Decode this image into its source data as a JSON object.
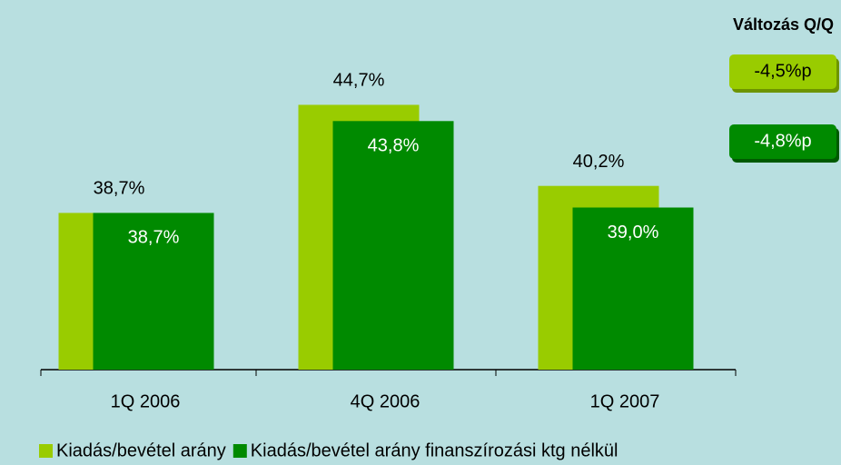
{
  "chart_data": {
    "type": "bar",
    "categories": [
      "1Q 2006",
      "4Q 2006",
      "1Q 2007"
    ],
    "series": [
      {
        "name": "Kiadás/bevétel arány",
        "color": "#99cc00",
        "values": [
          38.7,
          44.7,
          40.2
        ],
        "value_labels": [
          "38,7%",
          "44,7%",
          "40,2%"
        ]
      },
      {
        "name": "Kiadás/bevétel arány finanszírozási ktg nélkül",
        "color": "#008a00",
        "values": [
          38.7,
          43.8,
          39.0
        ],
        "value_labels": [
          "38,7%",
          "43,8%",
          "39,0%"
        ]
      }
    ],
    "ylim": [
      30,
      45
    ],
    "change_title": "Változás Q/Q",
    "change_labels": [
      "-4,5%p",
      "-4,8%p"
    ]
  }
}
